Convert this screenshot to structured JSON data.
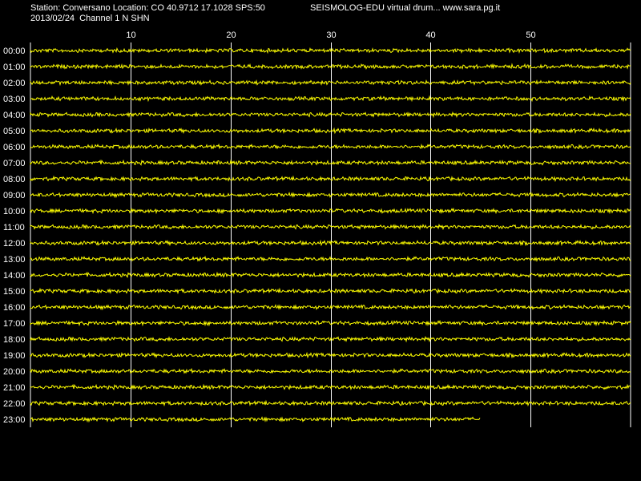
{
  "header": {
    "station_line": "Station: Conversano Location: CO 40.9712 17.1028 SPS:50",
    "app_line": "SEISMOLOG-EDU virtual drum... www.sara.pg.it",
    "date_line": "2013/02/24  Channel 1 N SHN"
  },
  "chart_data": {
    "type": "line",
    "title": "",
    "xlabel": "",
    "ylabel": "",
    "x_ticks": [
      10,
      20,
      30,
      40,
      50
    ],
    "xlim": [
      0,
      60
    ],
    "grid": true,
    "background_color": "#000000",
    "trace_color": "#ffff00",
    "grid_color": "#ffffff",
    "rows": [
      {
        "label": "00:00",
        "end_minute": 60
      },
      {
        "label": "01:00",
        "end_minute": 60
      },
      {
        "label": "02:00",
        "end_minute": 60
      },
      {
        "label": "03:00",
        "end_minute": 60
      },
      {
        "label": "04:00",
        "end_minute": 60
      },
      {
        "label": "05:00",
        "end_minute": 60
      },
      {
        "label": "06:00",
        "end_minute": 60
      },
      {
        "label": "07:00",
        "end_minute": 60
      },
      {
        "label": "08:00",
        "end_minute": 60
      },
      {
        "label": "09:00",
        "end_minute": 60
      },
      {
        "label": "10:00",
        "end_minute": 60
      },
      {
        "label": "11:00",
        "end_minute": 60
      },
      {
        "label": "12:00",
        "end_minute": 60
      },
      {
        "label": "13:00",
        "end_minute": 60
      },
      {
        "label": "14:00",
        "end_minute": 60
      },
      {
        "label": "15:00",
        "end_minute": 60
      },
      {
        "label": "16:00",
        "end_minute": 60
      },
      {
        "label": "17:00",
        "end_minute": 60
      },
      {
        "label": "18:00",
        "end_minute": 60
      },
      {
        "label": "19:00",
        "end_minute": 60
      },
      {
        "label": "20:00",
        "end_minute": 60
      },
      {
        "label": "21:00",
        "end_minute": 60
      },
      {
        "label": "22:00",
        "end_minute": 60
      },
      {
        "label": "23:00",
        "end_minute": 45
      }
    ]
  }
}
